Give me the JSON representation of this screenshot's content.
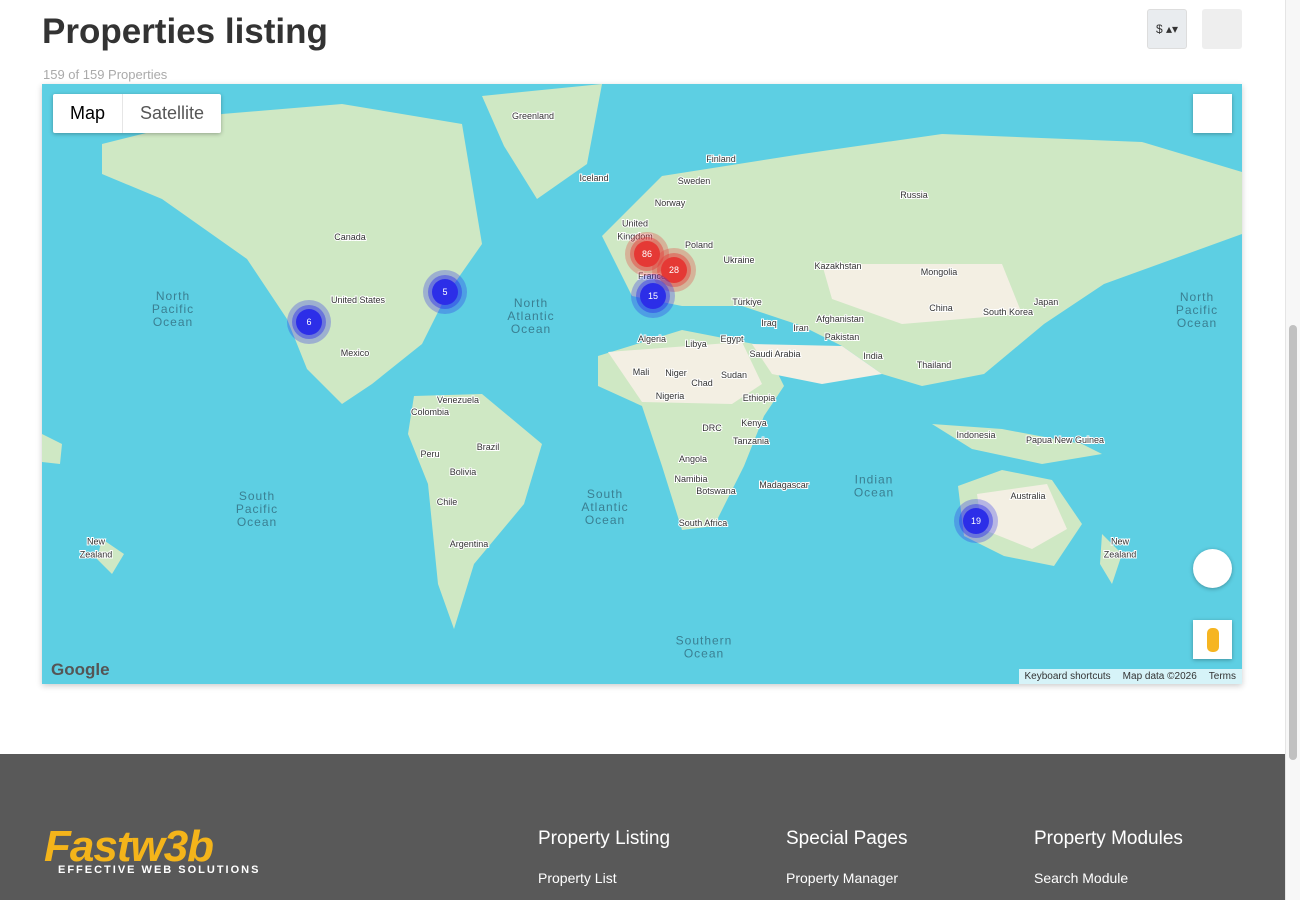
{
  "header": {
    "title": "Properties listing",
    "count": "159 of 159 Properties",
    "currency": "$"
  },
  "map": {
    "tabs": [
      "Map",
      "Satellite"
    ],
    "logo": "Google",
    "attribution": [
      "Keyboard shortcuts",
      "Map data ©2026",
      "Terms"
    ],
    "clusters": [
      {
        "count": "86",
        "color": "red"
      },
      {
        "count": "28",
        "color": "red"
      },
      {
        "count": "15",
        "color": "blue"
      },
      {
        "count": "5",
        "color": "blue"
      },
      {
        "count": "6",
        "color": "blue"
      },
      {
        "count": "19",
        "color": "blue"
      }
    ],
    "labels": [
      "Greenland",
      "Iceland",
      "Finland",
      "Sweden",
      "Norway",
      "Russia",
      "United Kingdom",
      "Poland",
      "Ukraine",
      "Kazakhstan",
      "Mongolia",
      "Canada",
      "United States",
      "North Pacific Ocean",
      "North Atlantic Ocean",
      "Japan",
      "South Korea",
      "China",
      "Türkiye",
      "Iraq",
      "Iran",
      "Afghanistan",
      "Pakistan",
      "India",
      "Mexico",
      "Algeria",
      "Libya",
      "Egypt",
      "Saudi Arabia",
      "Thailand",
      "Mali",
      "Niger",
      "Chad",
      "Sudan",
      "Nigeria",
      "Ethiopia",
      "Venezuela",
      "Colombia",
      "Kenya",
      "Indonesia",
      "Papua New Guinea",
      "DRC",
      "Tanzania",
      "Brazil",
      "Peru",
      "Bolivia",
      "Angola",
      "Namibia",
      "Botswana",
      "Madagascar",
      "Indian Ocean",
      "Australia",
      "South Pacific Ocean",
      "South Atlantic Ocean",
      "Chile",
      "South Africa",
      "Argentina",
      "New Zealand",
      "New Zealand",
      "Southern Ocean",
      "North Pacific Ocean",
      "France"
    ]
  },
  "footer": {
    "logo": "Fastw3b",
    "tagline": "EFFECTIVE WEB SOLUTIONS",
    "columns": [
      {
        "heading": "Property Listing",
        "links": [
          "Property List"
        ]
      },
      {
        "heading": "Special Pages",
        "links": [
          "Property Manager"
        ]
      },
      {
        "heading": "Property Modules",
        "links": [
          "Search Module"
        ]
      }
    ]
  }
}
